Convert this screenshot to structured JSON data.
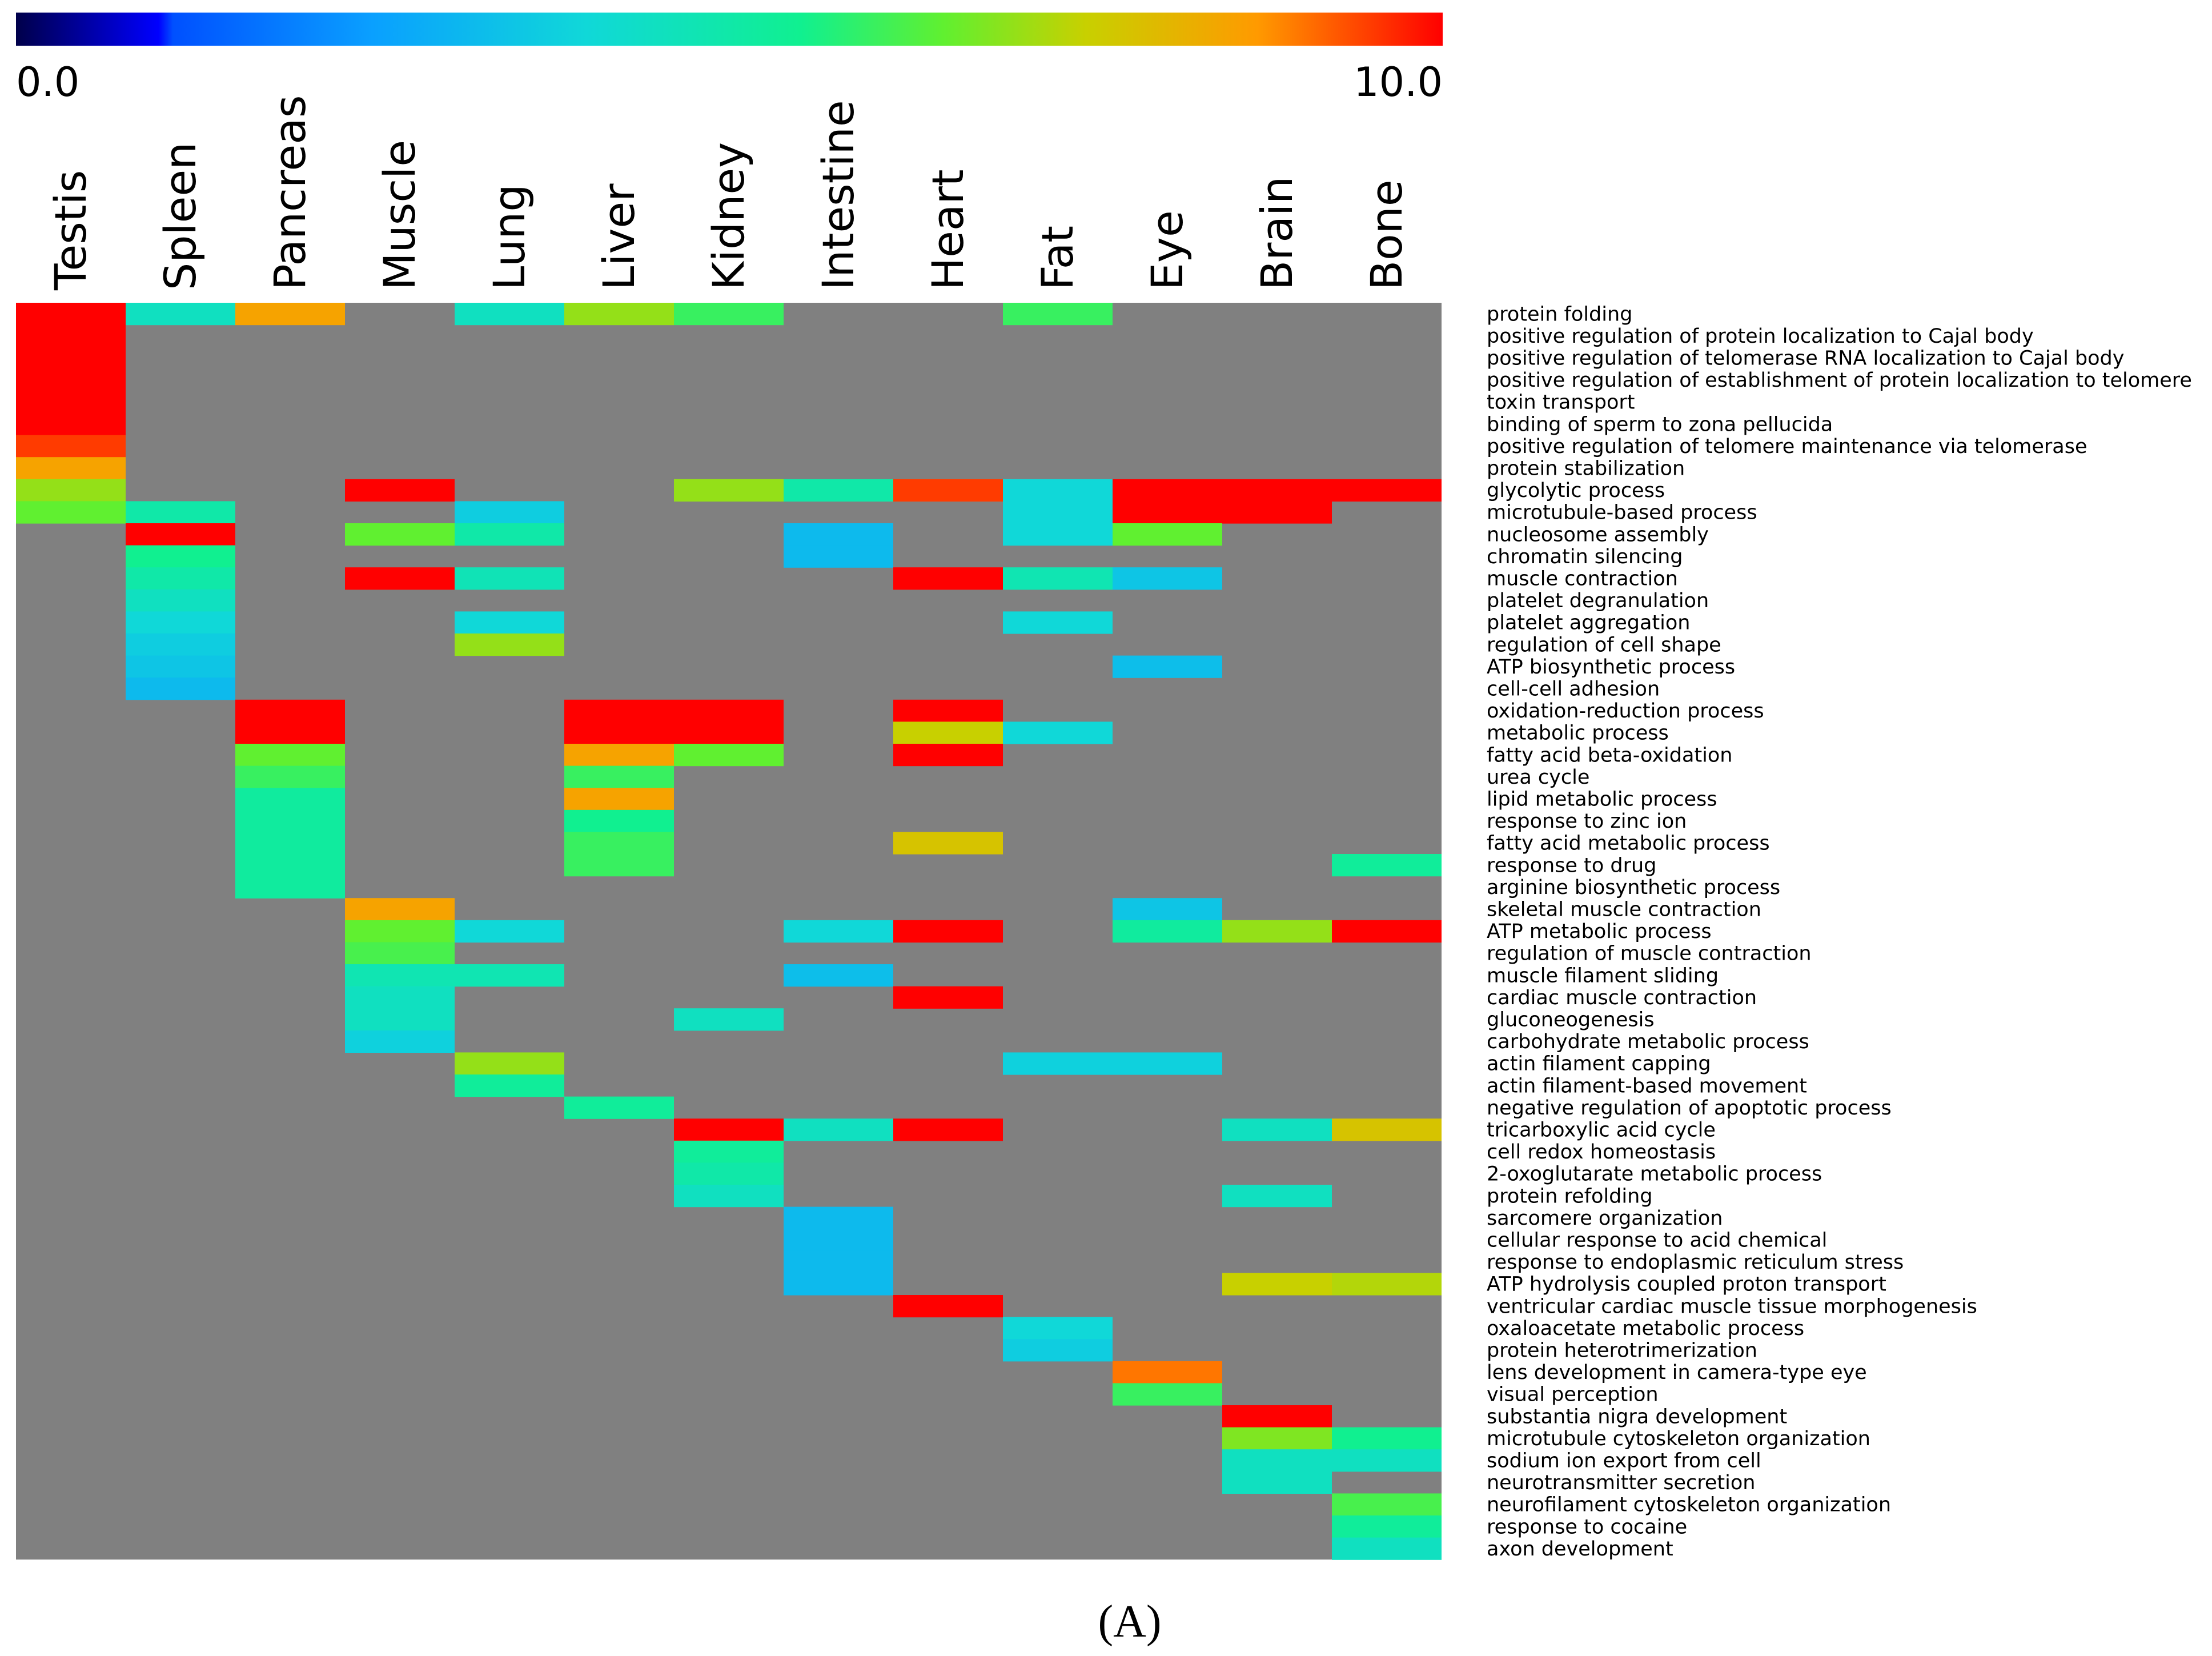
{
  "chart_data": {
    "type": "heatmap",
    "title": "",
    "panel_label": "(A)",
    "colorbar": {
      "min_label": "0.0",
      "max_label": "10.0",
      "min": 0.0,
      "max": 10.0
    },
    "missing_color": "#808080",
    "columns": [
      "Testis",
      "Spleen",
      "Pancreas",
      "Muscle",
      "Lung",
      "Liver",
      "Kidney",
      "Intestine",
      "Heart",
      "Fat",
      "Eye",
      "Brain",
      "Bone"
    ],
    "rows": [
      "protein folding",
      "positive regulation of protein localization to Cajal body",
      "positive regulation of telomerase RNA localization to Cajal body",
      "positive regulation of establishment of protein localization to telomere",
      "toxin transport",
      "binding of sperm to zona pellucida",
      "positive regulation of telomere maintenance via telomerase",
      "protein stabilization",
      "glycolytic process",
      "microtubule-based process",
      "nucleosome assembly",
      "chromatin silencing",
      "muscle contraction",
      "platelet degranulation",
      "platelet aggregation",
      "regulation of cell shape",
      "ATP biosynthetic process",
      "cell-cell adhesion",
      "oxidation-reduction process",
      "metabolic process",
      "fatty acid beta-oxidation",
      "urea cycle",
      "lipid metabolic process",
      "response to zinc ion",
      "fatty acid metabolic process",
      "response to drug",
      "arginine biosynthetic process",
      "skeletal muscle contraction",
      "ATP metabolic process",
      "regulation of muscle contraction",
      "muscle filament sliding",
      "cardiac muscle contraction",
      "gluconeogenesis",
      "carbohydrate metabolic process",
      "actin filament capping",
      "actin filament-based movement",
      "negative regulation of apoptotic process",
      "tricarboxylic acid cycle",
      "cell redox homeostasis",
      "2-oxoglutarate metabolic process",
      "protein refolding",
      "sarcomere organization",
      "cellular response to acid chemical",
      "response to endoplasmic reticulum stress",
      "ATP hydrolysis coupled proton transport",
      "ventricular cardiac muscle tissue morphogenesis",
      "oxaloacetate metabolic process",
      "protein heterotrimerization",
      "lens development in camera-type eye",
      "visual perception",
      "substantia nigra development",
      "microtubule cytoskeleton organization",
      "sodium ion export from cell",
      "neurotransmitter secretion",
      "neurofilament cytoskeleton organization",
      "response to cocaine",
      "axon development"
    ],
    "values": [
      [
        10,
        4.5,
        8.5,
        null,
        4.5,
        7,
        6,
        null,
        null,
        6,
        null,
        null,
        null
      ],
      [
        10,
        null,
        null,
        null,
        null,
        null,
        null,
        null,
        null,
        null,
        null,
        null,
        null
      ],
      [
        10,
        null,
        null,
        null,
        null,
        null,
        null,
        null,
        null,
        null,
        null,
        null,
        null
      ],
      [
        10,
        null,
        null,
        null,
        null,
        null,
        null,
        null,
        null,
        null,
        null,
        null,
        null
      ],
      [
        10,
        null,
        null,
        null,
        null,
        null,
        null,
        null,
        null,
        null,
        null,
        null,
        null
      ],
      [
        10,
        null,
        null,
        null,
        null,
        null,
        null,
        null,
        null,
        null,
        null,
        null,
        null
      ],
      [
        9.5,
        null,
        null,
        null,
        null,
        null,
        null,
        null,
        null,
        null,
        null,
        null,
        null
      ],
      [
        8.5,
        null,
        null,
        null,
        null,
        null,
        null,
        null,
        null,
        null,
        null,
        null,
        null
      ],
      [
        7,
        null,
        null,
        10,
        null,
        null,
        7,
        5,
        9.5,
        4,
        10,
        10,
        10
      ],
      [
        6.5,
        5,
        null,
        null,
        3.7,
        null,
        null,
        null,
        null,
        4,
        10,
        10,
        null
      ],
      [
        null,
        10,
        null,
        6.5,
        5,
        null,
        null,
        3.2,
        null,
        4,
        6.5,
        null,
        null
      ],
      [
        null,
        5.5,
        null,
        null,
        null,
        null,
        null,
        3.2,
        null,
        null,
        null,
        null,
        null
      ],
      [
        null,
        5,
        null,
        10,
        4.7,
        null,
        null,
        null,
        10,
        4.8,
        3.5,
        null,
        null
      ],
      [
        null,
        4.5,
        null,
        null,
        null,
        null,
        null,
        null,
        null,
        null,
        null,
        null,
        null
      ],
      [
        null,
        4,
        null,
        null,
        4,
        null,
        null,
        null,
        null,
        4,
        null,
        null,
        null
      ],
      [
        null,
        3.7,
        null,
        null,
        7,
        null,
        null,
        null,
        null,
        null,
        null,
        null,
        null
      ],
      [
        null,
        3.5,
        null,
        null,
        null,
        null,
        null,
        null,
        null,
        null,
        3.3,
        null,
        null
      ],
      [
        null,
        3.2,
        null,
        null,
        null,
        null,
        null,
        null,
        null,
        null,
        null,
        null,
        null
      ],
      [
        null,
        null,
        10,
        null,
        null,
        10,
        10,
        null,
        10,
        null,
        null,
        null,
        null
      ],
      [
        null,
        null,
        10,
        null,
        null,
        10,
        10,
        null,
        7.5,
        4,
        null,
        null,
        null
      ],
      [
        null,
        null,
        6.5,
        null,
        null,
        8.5,
        6.5,
        null,
        10,
        null,
        null,
        null,
        null
      ],
      [
        null,
        null,
        6,
        null,
        null,
        6,
        null,
        null,
        null,
        null,
        null,
        null,
        null
      ],
      [
        null,
        null,
        5.2,
        null,
        null,
        8.5,
        null,
        null,
        null,
        null,
        null,
        null,
        null
      ],
      [
        null,
        null,
        5.2,
        null,
        null,
        5.5,
        null,
        null,
        null,
        null,
        null,
        null,
        null
      ],
      [
        null,
        null,
        5.2,
        null,
        null,
        6,
        null,
        null,
        7.8,
        null,
        null,
        null,
        null
      ],
      [
        null,
        null,
        5.2,
        null,
        null,
        6,
        null,
        null,
        null,
        null,
        null,
        null,
        5.3
      ],
      [
        null,
        null,
        5.2,
        null,
        null,
        null,
        null,
        null,
        null,
        null,
        null,
        null,
        null
      ],
      [
        null,
        null,
        null,
        8.5,
        null,
        null,
        null,
        null,
        null,
        null,
        3.5,
        null,
        null
      ],
      [
        null,
        null,
        null,
        6.5,
        4,
        null,
        null,
        4,
        10,
        null,
        5.2,
        7,
        10
      ],
      [
        null,
        null,
        null,
        6.2,
        null,
        null,
        null,
        null,
        null,
        null,
        null,
        null,
        null
      ],
      [
        null,
        null,
        null,
        4.8,
        4.8,
        null,
        null,
        3.3,
        null,
        null,
        null,
        null,
        null
      ],
      [
        null,
        null,
        null,
        4.5,
        null,
        null,
        null,
        null,
        10,
        null,
        null,
        null,
        null
      ],
      [
        null,
        null,
        null,
        4.5,
        null,
        null,
        4.5,
        null,
        null,
        null,
        null,
        null,
        null
      ],
      [
        null,
        null,
        null,
        3.8,
        null,
        null,
        null,
        null,
        null,
        null,
        null,
        null,
        null
      ],
      [
        null,
        null,
        null,
        null,
        7,
        null,
        null,
        null,
        null,
        3.8,
        3.8,
        null,
        null
      ],
      [
        null,
        null,
        null,
        null,
        5.3,
        null,
        null,
        null,
        null,
        null,
        null,
        null,
        null
      ],
      [
        null,
        null,
        null,
        null,
        null,
        5.3,
        null,
        null,
        null,
        null,
        null,
        null,
        null
      ],
      [
        null,
        null,
        null,
        null,
        null,
        null,
        10,
        4.5,
        10,
        null,
        null,
        4.5,
        7.8
      ],
      [
        null,
        null,
        null,
        null,
        null,
        null,
        5.3,
        null,
        null,
        null,
        null,
        null,
        null
      ],
      [
        null,
        null,
        null,
        null,
        null,
        null,
        5,
        null,
        null,
        null,
        null,
        null,
        null
      ],
      [
        null,
        null,
        null,
        null,
        null,
        null,
        4.5,
        null,
        null,
        null,
        null,
        4.5,
        null
      ],
      [
        null,
        null,
        null,
        null,
        null,
        null,
        null,
        3.2,
        null,
        null,
        null,
        null,
        null
      ],
      [
        null,
        null,
        null,
        null,
        null,
        null,
        null,
        3.2,
        null,
        null,
        null,
        null,
        null
      ],
      [
        null,
        null,
        null,
        null,
        null,
        null,
        null,
        3.2,
        null,
        null,
        null,
        null,
        null
      ],
      [
        null,
        null,
        null,
        null,
        null,
        null,
        null,
        3.2,
        null,
        null,
        null,
        7.5,
        7.3
      ],
      [
        null,
        null,
        null,
        null,
        null,
        null,
        null,
        null,
        10,
        null,
        null,
        null,
        null
      ],
      [
        null,
        null,
        null,
        null,
        null,
        null,
        null,
        null,
        null,
        4,
        null,
        null,
        null
      ],
      [
        null,
        null,
        null,
        null,
        null,
        null,
        null,
        null,
        null,
        3.7,
        null,
        null,
        null
      ],
      [
        null,
        null,
        null,
        null,
        null,
        null,
        null,
        null,
        null,
        null,
        9,
        null,
        null
      ],
      [
        null,
        null,
        null,
        null,
        null,
        null,
        null,
        null,
        null,
        null,
        6,
        null,
        null
      ],
      [
        null,
        null,
        null,
        null,
        null,
        null,
        null,
        null,
        null,
        null,
        null,
        10,
        null
      ],
      [
        null,
        null,
        null,
        null,
        null,
        null,
        null,
        null,
        null,
        null,
        null,
        6.8,
        5.5
      ],
      [
        null,
        null,
        null,
        null,
        null,
        null,
        null,
        null,
        null,
        null,
        null,
        4.5,
        4.5
      ],
      [
        null,
        null,
        null,
        null,
        null,
        null,
        null,
        null,
        null,
        null,
        null,
        4.5,
        null
      ],
      [
        null,
        null,
        null,
        null,
        null,
        null,
        null,
        null,
        null,
        null,
        null,
        null,
        6.2
      ],
      [
        null,
        null,
        null,
        null,
        null,
        null,
        null,
        null,
        null,
        null,
        null,
        null,
        5.3
      ],
      [
        null,
        null,
        null,
        null,
        null,
        null,
        null,
        null,
        null,
        null,
        null,
        null,
        4.5
      ]
    ]
  }
}
